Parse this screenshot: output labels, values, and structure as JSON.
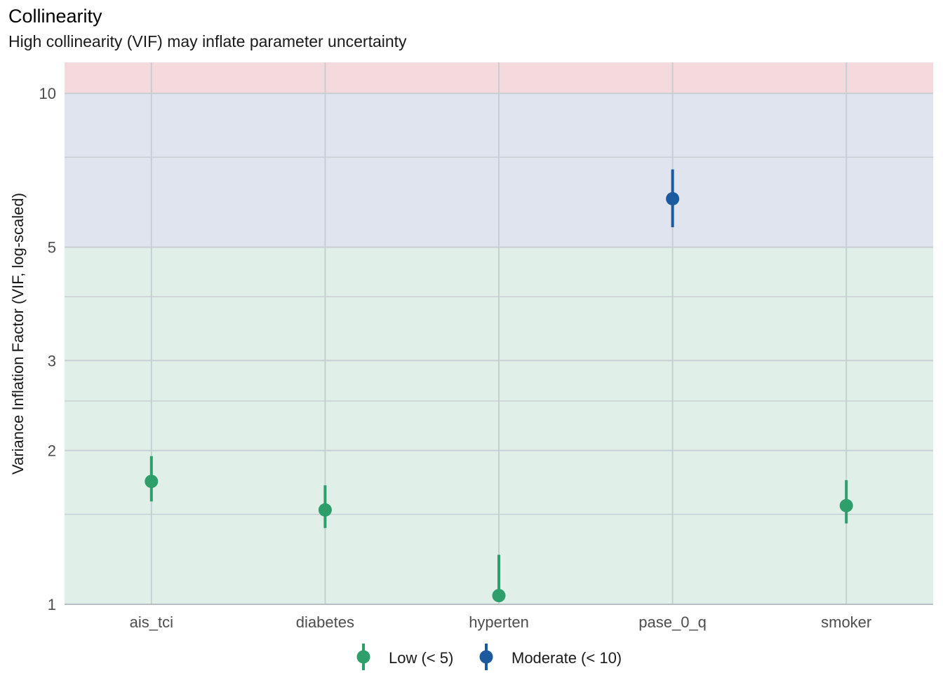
{
  "title": "Collinearity",
  "subtitle": "High collinearity (VIF) may inflate parameter uncertainty",
  "chart_data": {
    "type": "scatter",
    "title": "Collinearity",
    "subtitle": "High collinearity (VIF) may inflate parameter uncertainty",
    "xlabel": "",
    "ylabel": "Variance Inflation Factor (VIF, log-scaled)",
    "y_scale": "log",
    "ylim": [
      1,
      11.5
    ],
    "y_ticks": [
      1,
      2,
      3,
      5,
      10
    ],
    "y_tick_labels": [
      "1",
      "2",
      "3",
      "5",
      "10"
    ],
    "y_minor_gridlines": [
      1.5,
      2.5,
      4,
      7.5
    ],
    "grid": true,
    "legend_position": "bottom",
    "categories": [
      "ais_tci",
      "diabetes",
      "hyperten",
      "pase_0_q",
      "smoker"
    ],
    "bands": [
      {
        "name": "low",
        "from": 1,
        "to": 5,
        "color": "#e0f0e8"
      },
      {
        "name": "moderate",
        "from": 5,
        "to": 10,
        "color": "#dfe4ef"
      },
      {
        "name": "high",
        "from": 10,
        "to": 11.5,
        "color": "#f4d9dd"
      }
    ],
    "series": [
      {
        "name": "Low (< 5)",
        "color": "#2e9e6b",
        "points": [
          {
            "x": "ais_tci",
            "y": 1.74,
            "low": 1.59,
            "high": 1.95
          },
          {
            "x": "diabetes",
            "y": 1.53,
            "low": 1.41,
            "high": 1.71
          },
          {
            "x": "hyperten",
            "y": 1.04,
            "low": 1.01,
            "high": 1.25
          },
          {
            "x": "smoker",
            "y": 1.56,
            "low": 1.44,
            "high": 1.75
          }
        ]
      },
      {
        "name": "Moderate (< 10)",
        "color": "#1c5aa0",
        "points": [
          {
            "x": "pase_0_q",
            "y": 6.22,
            "low": 5.47,
            "high": 7.1
          }
        ]
      }
    ]
  }
}
